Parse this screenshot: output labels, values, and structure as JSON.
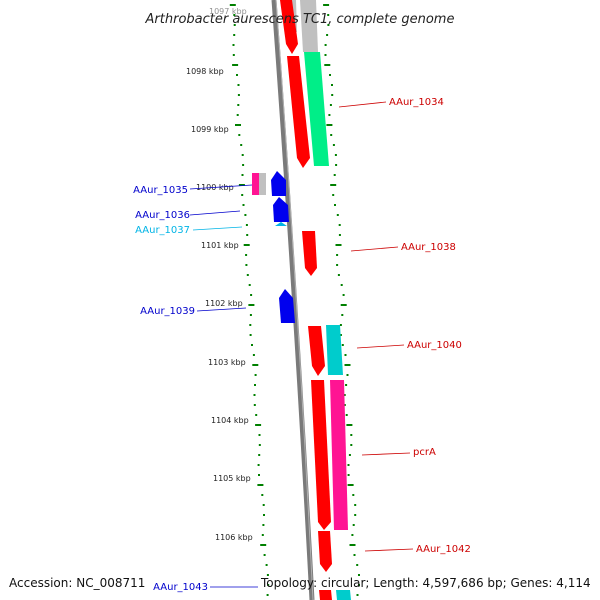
{
  "title": "Arthrobacter aurescens TC1, complete genome",
  "footer": {
    "accession": "Accession: NC_008711",
    "topology": "Topology: circular; Length: 4,597,686 bp; Genes: 4,114"
  },
  "ticks": [
    "1097 kbp",
    "1098 kbp",
    "1099 kbp",
    "1100 kbp",
    "1101 kbp",
    "1102 kbp",
    "1103 kbp",
    "1104 kbp",
    "1105 kbp",
    "1106 kbp"
  ],
  "genes": [
    {
      "id": "AAur_1034",
      "color": "#cc0000"
    },
    {
      "id": "AAur_1035",
      "color": "#0000cc"
    },
    {
      "id": "AAur_1036",
      "color": "#0000cc"
    },
    {
      "id": "AAur_1037",
      "color": "#00b4e6"
    },
    {
      "id": "AAur_1038",
      "color": "#cc0000"
    },
    {
      "id": "AAur_1039",
      "color": "#0000cc"
    },
    {
      "id": "AAur_1040",
      "color": "#cc0000"
    },
    {
      "id": "pcrA",
      "color": "#cc0000"
    },
    {
      "id": "AAur_1042",
      "color": "#cc0000"
    },
    {
      "id": "AAur_1043",
      "color": "#0000cc"
    }
  ],
  "colors": {
    "backbone": "#808080",
    "gc_dots": "#008000",
    "forward_cds": "#ff0000",
    "reverse_cds": "#0000ff",
    "cog_green": "#00ee88",
    "cog_cyan": "#00cccc",
    "cog_magenta": "#ff1493",
    "cog_grey": "#c0c0c0"
  }
}
